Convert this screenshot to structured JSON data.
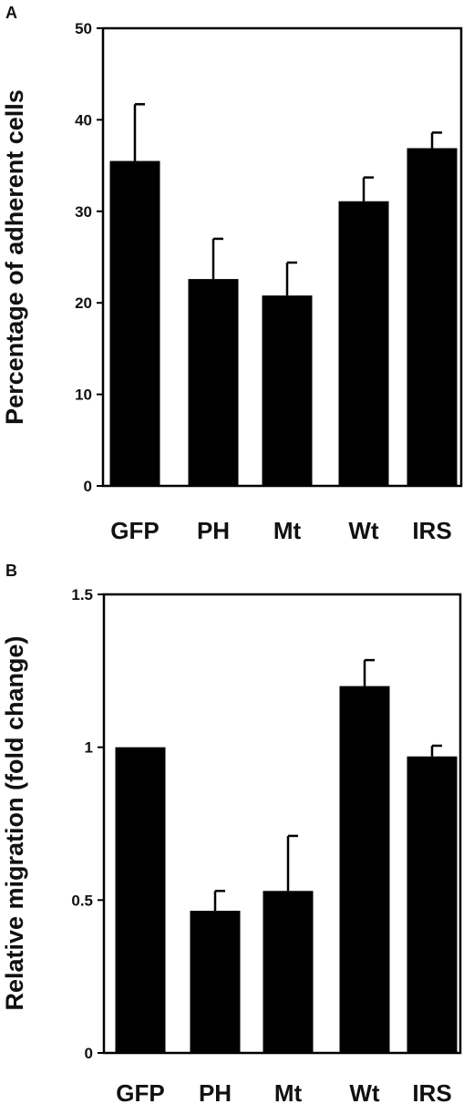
{
  "chart_data": [
    {
      "panel": "A",
      "type": "bar",
      "categories": [
        "GFP",
        "PH",
        "Mt",
        "Wt",
        "IRS"
      ],
      "values": [
        35.5,
        22.6,
        20.8,
        31.1,
        36.9
      ],
      "errors": [
        6.2,
        4.4,
        3.6,
        2.6,
        1.7
      ],
      "ylabel": "Percentage of adherent cells",
      "xlabel": "",
      "ylim": [
        0,
        50
      ],
      "yticks": [
        "0",
        "10",
        "20",
        "30",
        "40",
        "50"
      ],
      "yticks_values": [
        0,
        10,
        20,
        30,
        40,
        50
      ]
    },
    {
      "panel": "B",
      "type": "bar",
      "categories": [
        "GFP",
        "PH",
        "Mt",
        "Wt",
        "IRS"
      ],
      "values": [
        1.0,
        0.465,
        0.53,
        1.2,
        0.97
      ],
      "errors": [
        0.0,
        0.065,
        0.18,
        0.085,
        0.035
      ],
      "ylabel": "Relative migration (fold change)",
      "xlabel": "",
      "ylim": [
        0,
        1.5
      ],
      "yticks": [
        "0",
        "0.5",
        "1",
        "1.5"
      ],
      "yticks_values": [
        0,
        0.5,
        1,
        1.5
      ]
    }
  ],
  "style": {
    "bar_color": "#000000",
    "axis_color": "#000000"
  }
}
